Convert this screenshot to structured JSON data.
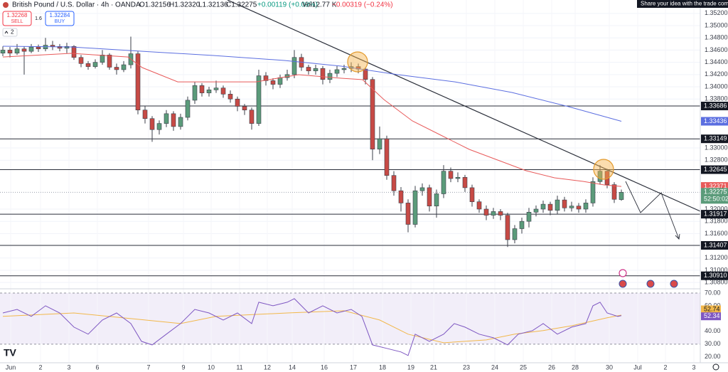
{
  "chart_data": {
    "type": "candlestick",
    "title": "British Pound / U.S. Dollar · 4h · OANDA",
    "header": {
      "open": "O1.32156",
      "high": "H1.32320",
      "low": "L1.32136",
      "close": "C1.32275",
      "change": "+0.00119 (+0.09%)",
      "volume": "Vol12.77 K",
      "volume_change": "−0.00319 (−0.24%)"
    },
    "trade": {
      "sell_price": 1.32268,
      "sell_label": "SELL",
      "spread": 1.6,
      "buy_price": 1.32284,
      "buy_label": "BUY"
    },
    "indicator_count": 2,
    "tooltip": "Share your idea with the trade comm",
    "countdown": "52:50:02",
    "up_color": "#5b9b7a",
    "down_color": "#c74a45",
    "xlim": [
      -0.4,
      98.1
    ],
    "xticks": [
      {
        "value": 1.1,
        "label": "Jun"
      },
      {
        "value": 5.3,
        "label": "2"
      },
      {
        "value": 9.3,
        "label": "3"
      },
      {
        "value": 13.3,
        "label": "6"
      },
      {
        "value": 20.5,
        "label": "7"
      },
      {
        "value": 25.4,
        "label": "9"
      },
      {
        "value": 29.3,
        "label": "10"
      },
      {
        "value": 33.3,
        "label": "11"
      },
      {
        "value": 37.2,
        "label": "12"
      },
      {
        "value": 40.7,
        "label": "14"
      },
      {
        "value": 45.2,
        "label": "16"
      },
      {
        "value": 49.3,
        "label": "17"
      },
      {
        "value": 53.4,
        "label": "18"
      },
      {
        "value": 57.4,
        "label": "19"
      },
      {
        "value": 60.6,
        "label": "21"
      },
      {
        "value": 65.2,
        "label": "23"
      },
      {
        "value": 69.2,
        "label": "24"
      },
      {
        "value": 73.2,
        "label": "25"
      },
      {
        "value": 77.2,
        "label": "26"
      },
      {
        "value": 80.5,
        "label": "28"
      },
      {
        "value": 85.3,
        "label": "30"
      },
      {
        "value": 89.3,
        "label": "Jul"
      },
      {
        "value": 93.2,
        "label": "2"
      },
      {
        "value": 97.2,
        "label": "3"
      }
    ],
    "ylim": [
      1.30709,
      1.35419
    ],
    "yticks": [
      {
        "value": 1.352,
        "label": "1.35200"
      },
      {
        "value": 1.35,
        "label": "1.35000"
      },
      {
        "value": 1.348,
        "label": "1.34800"
      },
      {
        "value": 1.346,
        "label": "1.34600"
      },
      {
        "value": 1.344,
        "label": "1.34400"
      },
      {
        "value": 1.342,
        "label": "1.34200"
      },
      {
        "value": 1.34,
        "label": "1.34000"
      },
      {
        "value": 1.338,
        "label": "1.33800"
      },
      {
        "value": 1.33,
        "label": "1.33000"
      },
      {
        "value": 1.328,
        "label": "1.32800"
      },
      {
        "value": 1.32,
        "label": "1.32000"
      },
      {
        "value": 1.318,
        "label": "1.31800"
      },
      {
        "value": 1.316,
        "label": "1.31600"
      },
      {
        "value": 1.312,
        "label": "1.31200"
      },
      {
        "value": 1.31,
        "label": "1.31000"
      },
      {
        "value": 1.308,
        "label": "1.30800"
      }
    ],
    "levels": [
      1.33686,
      1.33149,
      1.32645,
      1.31917,
      1.31407,
      {
        "value": 1.3091,
        "label": "1.30910"
      }
    ],
    "candles": [
      [
        1.3455,
        1.3466,
        1.345,
        1.346
      ],
      [
        1.346,
        1.3465,
        1.3448,
        1.3455
      ],
      [
        1.3455,
        1.347,
        1.3452,
        1.3462
      ],
      [
        1.3462,
        1.3466,
        1.342,
        1.3458
      ],
      [
        1.3458,
        1.347,
        1.3455,
        1.3465
      ],
      [
        1.3465,
        1.3469,
        1.3457,
        1.3462
      ],
      [
        1.3462,
        1.348,
        1.3458,
        1.3468
      ],
      [
        1.3468,
        1.3475,
        1.346,
        1.3466
      ],
      [
        1.3466,
        1.347,
        1.3458,
        1.3463
      ],
      [
        1.3463,
        1.3472,
        1.3455,
        1.3466
      ],
      [
        1.3466,
        1.3468,
        1.3444,
        1.3448
      ],
      [
        1.3448,
        1.3452,
        1.3432,
        1.3438
      ],
      [
        1.3438,
        1.3442,
        1.3428,
        1.3433
      ],
      [
        1.3433,
        1.3445,
        1.343,
        1.344
      ],
      [
        1.344,
        1.346,
        1.3436,
        1.3452
      ],
      [
        1.3452,
        1.3455,
        1.3428,
        1.3432
      ],
      [
        1.3432,
        1.3438,
        1.342,
        1.3428
      ],
      [
        1.3428,
        1.3442,
        1.3424,
        1.3436
      ],
      [
        1.3436,
        1.3482,
        1.343,
        1.3454
      ],
      [
        1.3454,
        1.3458,
        1.3355,
        1.3362
      ],
      [
        1.3362,
        1.3368,
        1.334,
        1.3348
      ],
      [
        1.3348,
        1.3352,
        1.331,
        1.333
      ],
      [
        1.333,
        1.3345,
        1.3322,
        1.334
      ],
      [
        1.334,
        1.3362,
        1.3334,
        1.3356
      ],
      [
        1.3356,
        1.336,
        1.3328,
        1.3335
      ],
      [
        1.3335,
        1.3356,
        1.333,
        1.335
      ],
      [
        1.335,
        1.3384,
        1.3345,
        1.3378
      ],
      [
        1.3378,
        1.3408,
        1.3372,
        1.3402
      ],
      [
        1.3402,
        1.3406,
        1.3384,
        1.339
      ],
      [
        1.339,
        1.34,
        1.3384,
        1.3395
      ],
      [
        1.3395,
        1.341,
        1.339,
        1.3398
      ],
      [
        1.3398,
        1.3402,
        1.3382,
        1.3388
      ],
      [
        1.3388,
        1.3394,
        1.3374,
        1.338
      ],
      [
        1.338,
        1.3384,
        1.336,
        1.3368
      ],
      [
        1.3368,
        1.3372,
        1.3354,
        1.3362
      ],
      [
        1.3362,
        1.3366,
        1.333,
        1.334
      ],
      [
        1.334,
        1.3428,
        1.3336,
        1.3418
      ],
      [
        1.3418,
        1.3424,
        1.3402,
        1.341
      ],
      [
        1.341,
        1.3414,
        1.3396,
        1.3404
      ],
      [
        1.3404,
        1.342,
        1.3398,
        1.3415
      ],
      [
        1.3415,
        1.3428,
        1.341,
        1.342
      ],
      [
        1.342,
        1.346,
        1.3414,
        1.3448
      ],
      [
        1.3448,
        1.3454,
        1.3426,
        1.3432
      ],
      [
        1.3432,
        1.3436,
        1.342,
        1.3426
      ],
      [
        1.3426,
        1.3436,
        1.342,
        1.343
      ],
      [
        1.343,
        1.3434,
        1.3404,
        1.3412
      ],
      [
        1.3412,
        1.3428,
        1.3406,
        1.3422
      ],
      [
        1.3422,
        1.3434,
        1.3416,
        1.3428
      ],
      [
        1.3428,
        1.3436,
        1.3422,
        1.343
      ],
      [
        1.343,
        1.344,
        1.3424,
        1.3433
      ],
      [
        1.3433,
        1.3438,
        1.3422,
        1.3429
      ],
      [
        1.3429,
        1.3432,
        1.3404,
        1.3412
      ],
      [
        1.3412,
        1.3416,
        1.328,
        1.3298
      ],
      [
        1.3298,
        1.3335,
        1.329,
        1.3315
      ],
      [
        1.3315,
        1.332,
        1.3248,
        1.3255
      ],
      [
        1.3255,
        1.3262,
        1.3222,
        1.323
      ],
      [
        1.323,
        1.3236,
        1.3196,
        1.321
      ],
      [
        1.321,
        1.3216,
        1.3162,
        1.3175
      ],
      [
        1.3175,
        1.3238,
        1.317,
        1.323
      ],
      [
        1.323,
        1.3242,
        1.3222,
        1.3235
      ],
      [
        1.3235,
        1.324,
        1.3196,
        1.3205
      ],
      [
        1.3205,
        1.3232,
        1.3186,
        1.3225
      ],
      [
        1.3225,
        1.3272,
        1.3218,
        1.3262
      ],
      [
        1.3262,
        1.3268,
        1.3244,
        1.325
      ],
      [
        1.325,
        1.326,
        1.3244,
        1.3252
      ],
      [
        1.3252,
        1.3256,
        1.3228,
        1.3235
      ],
      [
        1.3235,
        1.324,
        1.3204,
        1.3212
      ],
      [
        1.3212,
        1.3216,
        1.3194,
        1.32
      ],
      [
        1.32,
        1.3206,
        1.3182,
        1.319
      ],
      [
        1.319,
        1.3202,
        1.3184,
        1.3196
      ],
      [
        1.3196,
        1.32,
        1.3182,
        1.319
      ],
      [
        1.319,
        1.3194,
        1.3138,
        1.315
      ],
      [
        1.315,
        1.3174,
        1.3144,
        1.3168
      ],
      [
        1.3168,
        1.3186,
        1.316,
        1.318
      ],
      [
        1.318,
        1.3202,
        1.317,
        1.3195
      ],
      [
        1.3195,
        1.3206,
        1.3188,
        1.32
      ],
      [
        1.32,
        1.3214,
        1.3194,
        1.3208
      ],
      [
        1.3208,
        1.3212,
        1.319,
        1.3198
      ],
      [
        1.3198,
        1.3222,
        1.3192,
        1.3215
      ],
      [
        1.3215,
        1.322,
        1.3196,
        1.3202
      ],
      [
        1.3202,
        1.3212,
        1.3196,
        1.3205
      ],
      [
        1.3205,
        1.321,
        1.3194,
        1.32
      ],
      [
        1.32,
        1.3216,
        1.3194,
        1.321
      ],
      [
        1.321,
        1.3252,
        1.3204,
        1.3245
      ],
      [
        1.3245,
        1.3272,
        1.324,
        1.3262
      ],
      [
        1.3262,
        1.3266,
        1.3234,
        1.324
      ],
      [
        1.324,
        1.3244,
        1.321,
        1.3216
      ],
      [
        1.32156,
        1.3232,
        1.32136,
        1.32275
      ]
    ],
    "series": [
      {
        "color": "#e85a5a",
        "x": [
          0,
          9.6,
          17.6,
          19.6,
          24.6,
          29.6,
          35.6,
          41.6,
          47.6,
          50.6,
          53.6,
          57.6,
          61.6,
          65.6,
          69.6,
          73.6,
          77.6,
          81.6,
          84.6,
          87
        ],
        "values": [
          1.34488,
          1.34547,
          1.34488,
          1.34314,
          1.34081,
          1.34081,
          1.34081,
          1.34198,
          1.3414,
          1.34116,
          1.33791,
          1.33442,
          1.33209,
          1.32977,
          1.32802,
          1.32628,
          1.32512,
          1.32453,
          1.32395,
          1.32371
        ]
      },
      {
        "color": "#5b6ee0",
        "x": [
          0,
          9.6,
          19.6,
          29.6,
          39.6,
          47.6,
          55.6,
          63.6,
          71.6,
          79.6,
          87
        ],
        "values": [
          1.34663,
          1.34651,
          1.34581,
          1.34512,
          1.3443,
          1.34337,
          1.34198,
          1.34081,
          1.33907,
          1.33674,
          1.33436
        ]
      }
    ],
    "rsi": {
      "ylim": [
        16,
        72.2
      ],
      "yticks": [
        {
          "value": 70,
          "label": "70.00"
        },
        {
          "value": 60,
          "label": "60.00"
        },
        {
          "value": 40,
          "label": "40.00"
        },
        {
          "value": 30,
          "label": "30.00"
        },
        {
          "value": 20,
          "label": "20.00"
        }
      ],
      "color": "#7e57c2",
      "x": [
        0,
        2,
        4,
        6,
        8,
        10,
        12,
        14,
        16,
        18,
        19.5,
        21,
        23,
        25,
        27,
        29,
        31,
        33,
        35,
        36,
        38,
        40,
        41,
        43,
        45,
        47,
        49,
        50.5,
        52,
        54,
        56,
        57,
        58,
        60,
        62,
        63.5,
        65,
        67,
        69,
        71,
        72.5,
        74.5,
        76,
        78,
        80,
        82,
        83,
        84,
        85,
        86.5,
        87
      ],
      "values": [
        54.4,
        57.2,
        51.7,
        60,
        54.4,
        43.3,
        37.8,
        48.9,
        54.4,
        46.1,
        32.2,
        29.4,
        37.8,
        46.1,
        57.2,
        54.4,
        48.9,
        54.4,
        46.1,
        62.8,
        60,
        62.8,
        65.6,
        54.4,
        60,
        54.4,
        57.2,
        51.7,
        29.4,
        26.7,
        23.9,
        21.1,
        37.8,
        32.2,
        37.8,
        46.1,
        43.3,
        37.8,
        35,
        29.4,
        37.8,
        40.6,
        46.1,
        37.8,
        43.3,
        46.1,
        60,
        62.8,
        54.4,
        51.7,
        52.34
      ],
      "ma": {
        "color": "#f2b84b",
        "x": [
          0,
          10,
          20,
          25,
          30,
          40,
          48,
          53,
          57,
          62,
          68,
          72,
          76,
          80,
          85,
          87
        ],
        "values": [
          51.7,
          54.4,
          48.9,
          46.1,
          51.7,
          54.4,
          56.1,
          48.9,
          37.8,
          31.1,
          33.3,
          37.8,
          40.6,
          44.4,
          50.6,
          52.74
        ]
      }
    }
  }
}
